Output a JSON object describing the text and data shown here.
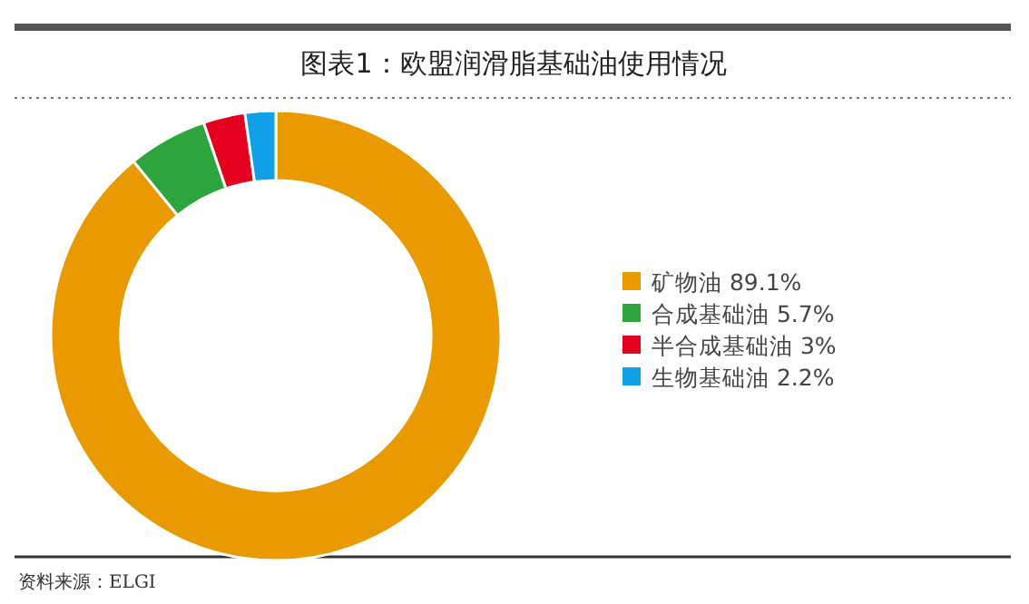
{
  "chart_data": {
    "type": "donut",
    "title": "图表1：欧盟润滑脂基础油使用情况",
    "categories": [
      "矿物油",
      "合成基础油",
      "半合成基础油",
      "生物基础油"
    ],
    "values": [
      89.1,
      5.7,
      3,
      2.2
    ],
    "value_labels": [
      "89.1%",
      "5.7%",
      "3%",
      "2.2%"
    ],
    "colors": [
      "#e99a00",
      "#2ea43c",
      "#e5001f",
      "#10a0e8"
    ],
    "legend": "right",
    "annotations": [
      "资料来源：ELGI"
    ]
  }
}
